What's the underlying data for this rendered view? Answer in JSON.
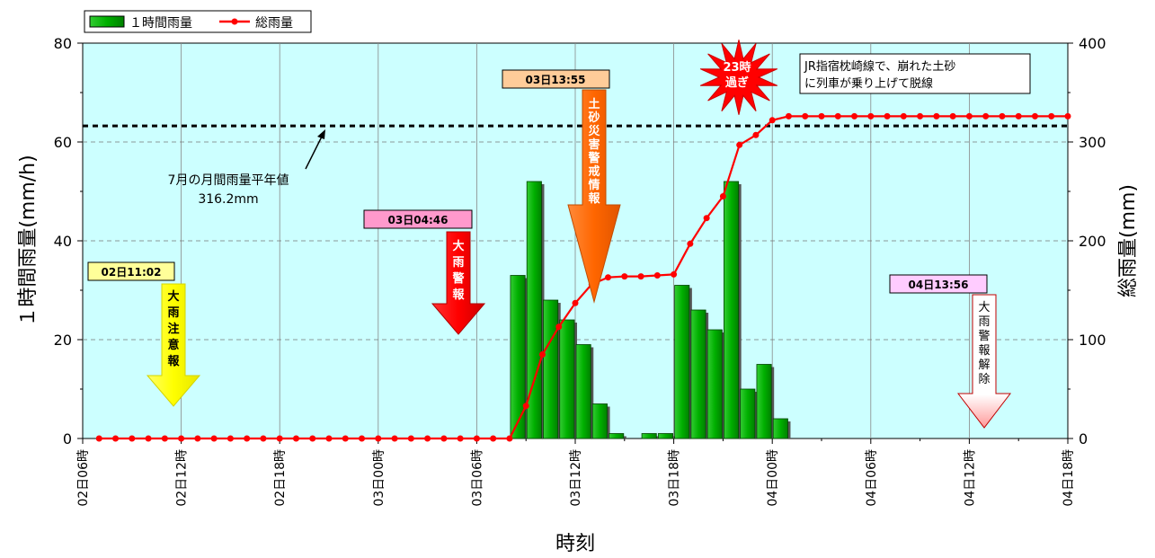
{
  "chart_data": {
    "type": "bar+line",
    "legend": {
      "placement": "top-left",
      "bar_label": "１時間雨量",
      "line_label": "総雨量"
    },
    "xlabel": "時刻",
    "ylabel_left": "１時間雨量(mm/h)",
    "ylabel_right": "総雨量(mm)",
    "y_left_lim": [
      0,
      80
    ],
    "y_right_lim": [
      0,
      400
    ],
    "y_left_ticks": [
      "0",
      "20",
      "40",
      "60",
      "80"
    ],
    "y_right_ticks": [
      "0",
      "100",
      "200",
      "300",
      "400"
    ],
    "x_ticks": [
      "02日06時",
      "02日12時",
      "02日18時",
      "03日00時",
      "03日06時",
      "03日12時",
      "03日18時",
      "04日00時",
      "04日06時",
      "04日12時",
      "04日18時"
    ],
    "x_range_hours": [
      0,
      60
    ],
    "grid": true,
    "colors": {
      "plot_bg": "#ccffff",
      "bar": "#00a000",
      "line": "#ff0000"
    },
    "hourly_rain": [
      {
        "h": 27,
        "v": 33
      },
      {
        "h": 28,
        "v": 52
      },
      {
        "h": 29,
        "v": 28
      },
      {
        "h": 30,
        "v": 24
      },
      {
        "h": 31,
        "v": 19
      },
      {
        "h": 32,
        "v": 7
      },
      {
        "h": 33,
        "v": 1
      },
      {
        "h": 35,
        "v": 1
      },
      {
        "h": 36,
        "v": 1
      },
      {
        "h": 37,
        "v": 31
      },
      {
        "h": 38,
        "v": 26
      },
      {
        "h": 39,
        "v": 22
      },
      {
        "h": 40,
        "v": 52
      },
      {
        "h": 41,
        "v": 10
      },
      {
        "h": 42,
        "v": 15
      },
      {
        "h": 43,
        "v": 4
      }
    ],
    "total_rain": [
      [
        1,
        0
      ],
      [
        2,
        0
      ],
      [
        3,
        0
      ],
      [
        4,
        0
      ],
      [
        5,
        0
      ],
      [
        6,
        0
      ],
      [
        7,
        0
      ],
      [
        8,
        0
      ],
      [
        9,
        0
      ],
      [
        10,
        0
      ],
      [
        11,
        0
      ],
      [
        12,
        0
      ],
      [
        13,
        0
      ],
      [
        14,
        0
      ],
      [
        15,
        0
      ],
      [
        16,
        0
      ],
      [
        17,
        0
      ],
      [
        18,
        0
      ],
      [
        19,
        0
      ],
      [
        20,
        0
      ],
      [
        21,
        0
      ],
      [
        22,
        0
      ],
      [
        23,
        0
      ],
      [
        24,
        0
      ],
      [
        25,
        0
      ],
      [
        26,
        0
      ],
      [
        27,
        33
      ],
      [
        28,
        85
      ],
      [
        29,
        113
      ],
      [
        30,
        137
      ],
      [
        31,
        156
      ],
      [
        32,
        163
      ],
      [
        33,
        164
      ],
      [
        34,
        164
      ],
      [
        35,
        165
      ],
      [
        36,
        166
      ],
      [
        37,
        197
      ],
      [
        38,
        223
      ],
      [
        39,
        245
      ],
      [
        40,
        297
      ],
      [
        41,
        307
      ],
      [
        42,
        322
      ],
      [
        43,
        326
      ],
      [
        44,
        326
      ],
      [
        45,
        326
      ],
      [
        46,
        326
      ],
      [
        47,
        326
      ],
      [
        48,
        326
      ],
      [
        49,
        326
      ],
      [
        50,
        326
      ],
      [
        51,
        326
      ],
      [
        52,
        326
      ],
      [
        53,
        326
      ],
      [
        54,
        326
      ],
      [
        55,
        326
      ],
      [
        56,
        326
      ],
      [
        57,
        326
      ],
      [
        58,
        326
      ],
      [
        59,
        326
      ],
      [
        60,
        326
      ]
    ],
    "normal_line": {
      "value": 316.2,
      "label_line1": "7月の月間雨量平年値",
      "label_line2": "316.2mm"
    },
    "events": [
      {
        "time": "02日11:02",
        "text": "大雨注意報",
        "style": "yellow"
      },
      {
        "time": "03日04:46",
        "text": "大雨警報",
        "style": "red"
      },
      {
        "time": "03日13:55",
        "text": "土砂災害警戒情報",
        "style": "orange"
      },
      {
        "time": "04日13:56",
        "text": "大雨警報解除",
        "style": "white"
      }
    ],
    "burst": {
      "line1": "23時",
      "line2": "過ぎ"
    },
    "note": {
      "line1": "JR指宿枕崎線で、崩れた土砂",
      "line2": "に列車が乗り上げて脱線"
    }
  }
}
